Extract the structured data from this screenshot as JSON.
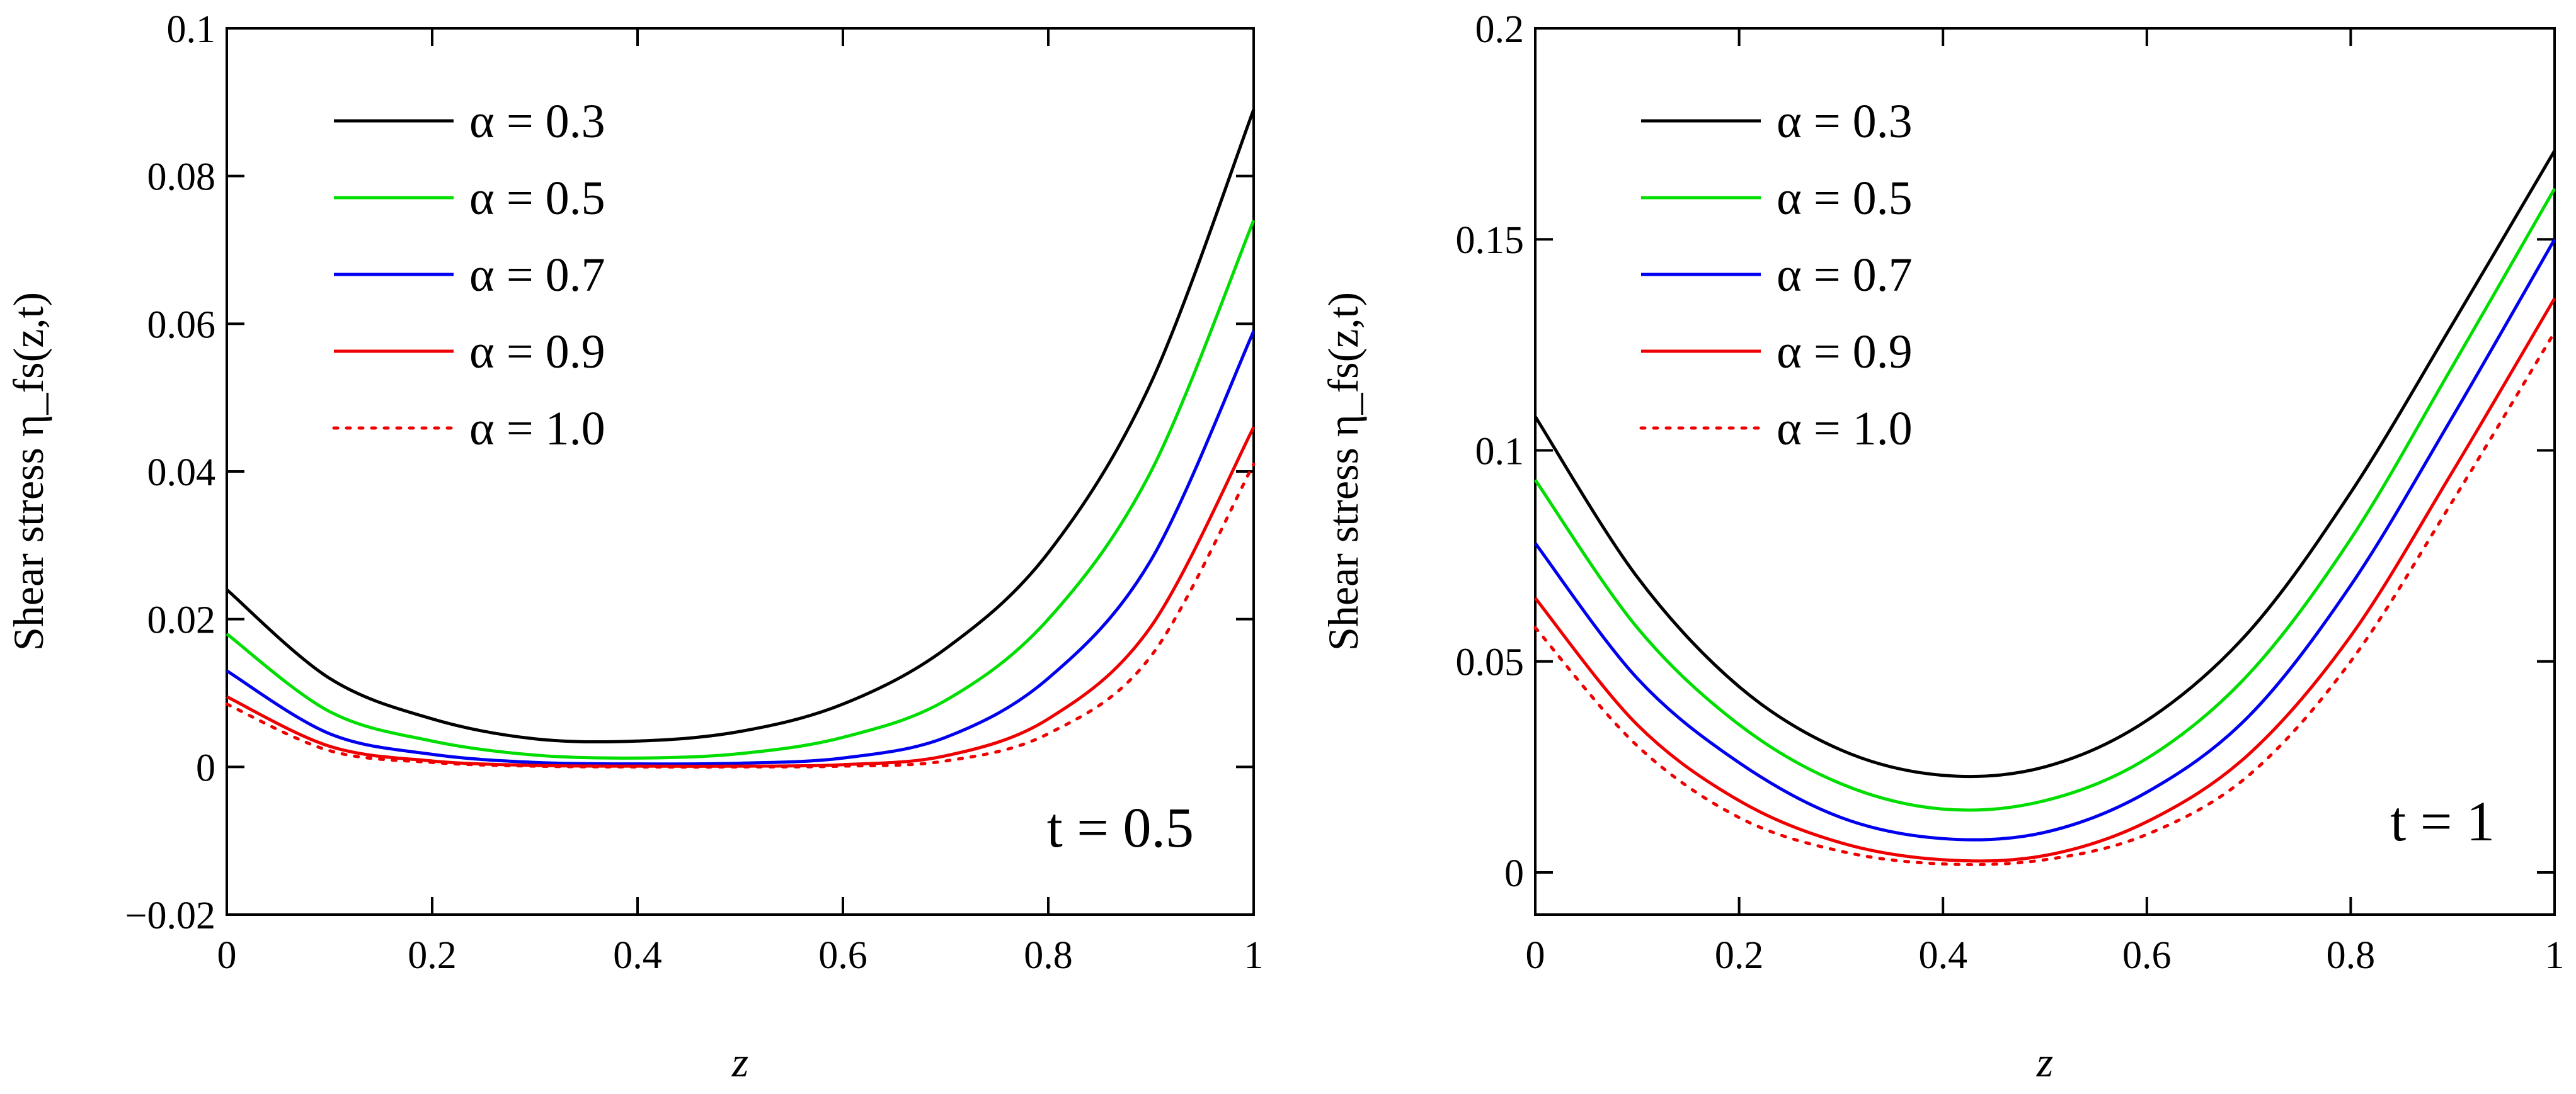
{
  "chart_data": [
    {
      "type": "line",
      "annotation": "t = 0.5",
      "xlabel": "z",
      "ylabel": "Shear stress η_fs(z,t)",
      "xlim": [
        0,
        1
      ],
      "ylim": [
        -0.02,
        0.1
      ],
      "x_ticks": [
        "0",
        "0.2",
        "0.4",
        "0.6",
        "0.8",
        "1"
      ],
      "y_ticks": [
        "−0.02",
        "0",
        "0.02",
        "0.04",
        "0.06",
        "0.08",
        "0.1"
      ],
      "y_tick_values": [
        -0.02,
        0,
        0.02,
        0.04,
        0.06,
        0.08,
        0.1
      ],
      "x_tick_values": [
        0,
        0.2,
        0.4,
        0.6,
        0.8,
        1
      ],
      "legend_position": "top-left",
      "x": [
        0,
        0.1,
        0.2,
        0.3,
        0.4,
        0.5,
        0.6,
        0.7,
        0.8,
        0.9,
        1.0
      ],
      "series": [
        {
          "name": "α = 0.3",
          "color": "#000000",
          "style": "solid",
          "values": [
            0.024,
            0.012,
            0.0065,
            0.0038,
            0.0035,
            0.0048,
            0.0085,
            0.016,
            0.029,
            0.052,
            0.089
          ]
        },
        {
          "name": "α = 0.5",
          "color": "#00dd00",
          "style": "solid",
          "values": [
            0.018,
            0.0075,
            0.0035,
            0.0016,
            0.0012,
            0.0018,
            0.004,
            0.009,
            0.02,
            0.04,
            0.074
          ]
        },
        {
          "name": "α = 0.7",
          "color": "#0000ee",
          "style": "solid",
          "values": [
            0.013,
            0.0045,
            0.0017,
            0.0006,
            0.0004,
            0.0005,
            0.0012,
            0.004,
            0.012,
            0.028,
            0.059
          ]
        },
        {
          "name": "α = 0.9",
          "color": "#ee0000",
          "style": "solid",
          "values": [
            0.0095,
            0.0028,
            0.0008,
            0.0002,
            0.0001,
            0.0001,
            0.0003,
            0.0015,
            0.0065,
            0.019,
            0.046
          ]
        },
        {
          "name": "α = 1.0",
          "color": "#ee0000",
          "style": "dotted",
          "values": [
            0.0085,
            0.0022,
            0.0006,
            0.0001,
            0.0,
            0.0,
            0.0001,
            0.0008,
            0.0045,
            0.015,
            0.041
          ]
        }
      ]
    },
    {
      "type": "line",
      "annotation": "t = 1",
      "xlabel": "z",
      "ylabel": "Shear stress η_fs(z,t)",
      "xlim": [
        0,
        1
      ],
      "ylim": [
        -0.01,
        0.2
      ],
      "x_ticks": [
        "0",
        "0.2",
        "0.4",
        "0.6",
        "0.8",
        "1"
      ],
      "y_ticks": [
        "0",
        "0.05",
        "0.1",
        "0.15",
        "0.2"
      ],
      "y_tick_values": [
        0,
        0.05,
        0.1,
        0.15,
        0.2
      ],
      "x_tick_values": [
        0,
        0.2,
        0.4,
        0.6,
        0.8,
        1
      ],
      "legend_position": "top-left",
      "x": [
        0,
        0.1,
        0.2,
        0.3,
        0.4,
        0.5,
        0.6,
        0.7,
        0.8,
        0.9,
        1.0
      ],
      "series": [
        {
          "name": "α = 0.3",
          "color": "#000000",
          "style": "solid",
          "values": [
            0.108,
            0.07,
            0.044,
            0.029,
            0.023,
            0.025,
            0.036,
            0.057,
            0.09,
            0.13,
            0.171
          ]
        },
        {
          "name": "α = 0.5",
          "color": "#00dd00",
          "style": "solid",
          "values": [
            0.093,
            0.058,
            0.035,
            0.021,
            0.015,
            0.017,
            0.027,
            0.047,
            0.079,
            0.12,
            0.162
          ]
        },
        {
          "name": "α = 0.7",
          "color": "#0000ee",
          "style": "solid",
          "values": [
            0.078,
            0.046,
            0.026,
            0.013,
            0.008,
            0.0095,
            0.019,
            0.037,
            0.068,
            0.108,
            0.15
          ]
        },
        {
          "name": "α = 0.9",
          "color": "#ee0000",
          "style": "solid",
          "values": [
            0.065,
            0.035,
            0.017,
            0.007,
            0.003,
            0.004,
            0.012,
            0.028,
            0.056,
            0.095,
            0.136
          ]
        },
        {
          "name": "α = 1.0",
          "color": "#ee0000",
          "style": "dotted",
          "values": [
            0.058,
            0.03,
            0.013,
            0.005,
            0.002,
            0.003,
            0.009,
            0.023,
            0.05,
            0.088,
            0.128
          ]
        }
      ]
    }
  ]
}
